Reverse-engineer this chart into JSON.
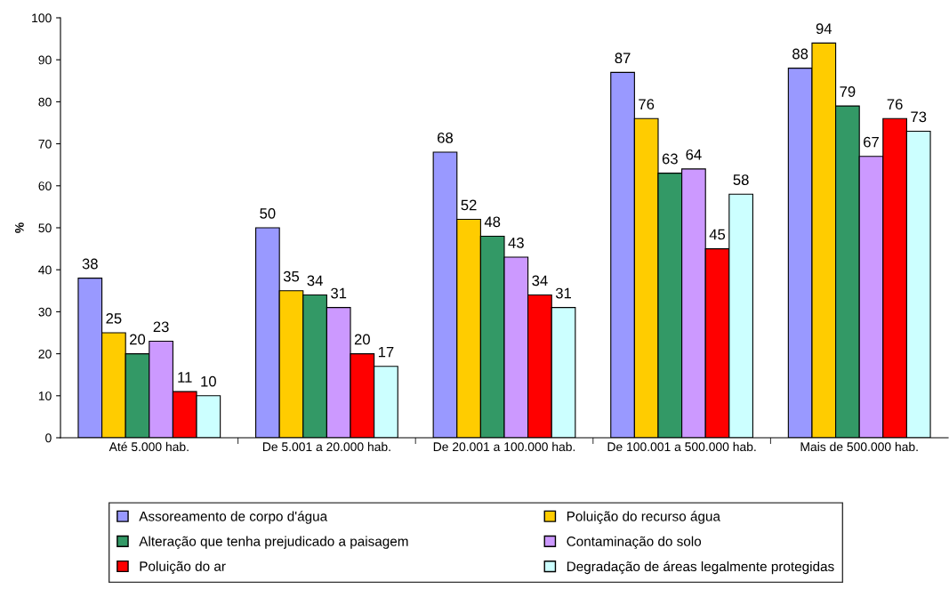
{
  "chart_data": {
    "type": "bar",
    "ylabel": "%",
    "categories": [
      "Até 5.000 hab.",
      "De 5.001 a 20.000 hab.",
      "De 20.001 a 100.000 hab.",
      "De 100.001 a 500.000 hab.",
      "Mais de 500.000 hab."
    ],
    "series": [
      {
        "name": "Assoreamento de corpo d'água",
        "color": "#9999ff",
        "values": [
          38,
          50,
          68,
          87,
          88
        ]
      },
      {
        "name": "Poluição do recurso água",
        "color": "#ffcc00",
        "values": [
          25,
          35,
          52,
          76,
          94
        ]
      },
      {
        "name": "Alteração que tenha prejudicado a paisagem",
        "color": "#339966",
        "values": [
          20,
          34,
          48,
          63,
          79
        ]
      },
      {
        "name": "Contaminação do solo",
        "color": "#cc99ff",
        "values": [
          23,
          31,
          43,
          64,
          67
        ]
      },
      {
        "name": "Poluição do ar",
        "color": "#ff0000",
        "values": [
          11,
          20,
          34,
          45,
          76
        ]
      },
      {
        "name": "Degradação de áreas legalmente protegidas",
        "color": "#ccffff",
        "values": [
          10,
          17,
          31,
          58,
          73
        ]
      }
    ],
    "ylim": [
      0,
      100
    ],
    "yticks": [
      0,
      10,
      20,
      30,
      40,
      50,
      60,
      70,
      80,
      90,
      100
    ],
    "data_labels": true,
    "grid": false,
    "legend": "bottom"
  }
}
